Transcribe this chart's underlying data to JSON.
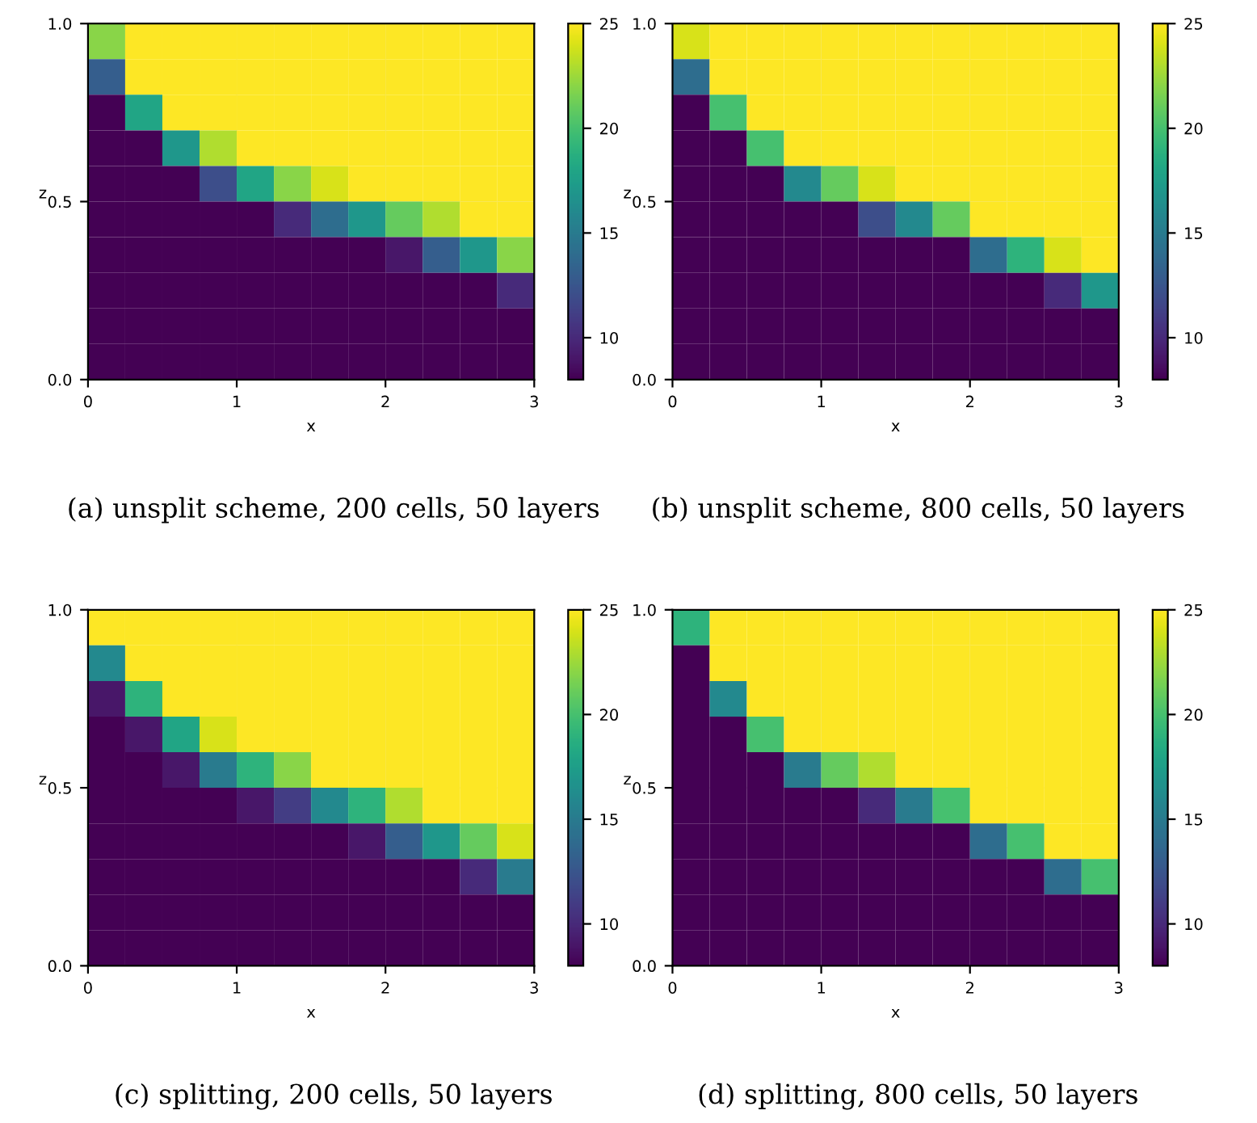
{
  "chart_data": [
    {
      "type": "heatmap",
      "xlabel": "x",
      "ylabel": "z",
      "annotations": [
        "(a) unsplit scheme, 200 cells, 50 layers"
      ],
      "xlim": [
        0,
        3
      ],
      "ylim": [
        0,
        1
      ],
      "xticks": [
        {
          "value": 0,
          "label": "0"
        },
        {
          "value": 1,
          "label": "1"
        },
        {
          "value": 2,
          "label": "2"
        },
        {
          "value": 3,
          "label": "3"
        }
      ],
      "yticks": [
        {
          "value": 0,
          "label": "0.0"
        },
        {
          "value": 0.5,
          "label": "0.5"
        },
        {
          "value": 1,
          "label": "1.0"
        }
      ],
      "grid": true,
      "clim": [
        8,
        25
      ],
      "cticks": [
        {
          "value": 10,
          "label": "10"
        },
        {
          "value": 15,
          "label": "15"
        },
        {
          "value": 20,
          "label": "20"
        },
        {
          "value": 25,
          "label": "25"
        }
      ],
      "x": [
        0.125,
        0.375,
        0.625,
        0.875,
        1.125,
        1.375,
        1.625,
        1.875,
        2.125,
        2.375,
        2.625,
        2.875
      ],
      "cells": [
        [
          22,
          25,
          25,
          25,
          25,
          25,
          25,
          25,
          25,
          25,
          25,
          25
        ],
        [
          13,
          25,
          25,
          25,
          25,
          25,
          25,
          25,
          25,
          25,
          25,
          25
        ],
        [
          8,
          18,
          25,
          25,
          25,
          25,
          25,
          25,
          25,
          25,
          25,
          25
        ],
        [
          8,
          8,
          17,
          23,
          25,
          25,
          25,
          25,
          25,
          25,
          25,
          25
        ],
        [
          8,
          8,
          8,
          12,
          18,
          22,
          24,
          25,
          25,
          25,
          25,
          25
        ],
        [
          8,
          8,
          8,
          8,
          8,
          10,
          14,
          17,
          21,
          23,
          25,
          25
        ],
        [
          8,
          8,
          8,
          8,
          8,
          8,
          8,
          8,
          9,
          13,
          17,
          22
        ],
        [
          8,
          8,
          8,
          8,
          8,
          8,
          8,
          8,
          8,
          8,
          8,
          10
        ],
        [
          8,
          8,
          8,
          8,
          8,
          8,
          8,
          8,
          8,
          8,
          8,
          8
        ],
        [
          8,
          8,
          8,
          8,
          8,
          8,
          8,
          8,
          8,
          8,
          8,
          8
        ]
      ]
    },
    {
      "type": "heatmap",
      "xlabel": "x",
      "ylabel": "z",
      "annotations": [
        "(b) unsplit scheme, 800 cells, 50 layers"
      ],
      "xlim": [
        0,
        3
      ],
      "ylim": [
        0,
        1
      ],
      "xticks": [
        {
          "value": 0,
          "label": "0"
        },
        {
          "value": 1,
          "label": "1"
        },
        {
          "value": 2,
          "label": "2"
        },
        {
          "value": 3,
          "label": "3"
        }
      ],
      "yticks": [
        {
          "value": 0,
          "label": "0.0"
        },
        {
          "value": 0.5,
          "label": "0.5"
        },
        {
          "value": 1,
          "label": "1.0"
        }
      ],
      "grid": true,
      "clim": [
        8,
        25
      ],
      "cticks": [
        {
          "value": 10,
          "label": "10"
        },
        {
          "value": 15,
          "label": "15"
        },
        {
          "value": 20,
          "label": "20"
        },
        {
          "value": 25,
          "label": "25"
        }
      ],
      "x": [
        0.125,
        0.375,
        0.625,
        0.875,
        1.125,
        1.375,
        1.625,
        1.875,
        2.125,
        2.375,
        2.625,
        2.875
      ],
      "cells": [
        [
          24,
          25,
          25,
          25,
          25,
          25,
          25,
          25,
          25,
          25,
          25,
          25
        ],
        [
          14,
          25,
          25,
          25,
          25,
          25,
          25,
          25,
          25,
          25,
          25,
          25
        ],
        [
          8,
          20,
          25,
          25,
          25,
          25,
          25,
          25,
          25,
          25,
          25,
          25
        ],
        [
          8,
          8,
          20,
          25,
          25,
          25,
          25,
          25,
          25,
          25,
          25,
          25
        ],
        [
          8,
          8,
          8,
          16,
          21,
          24,
          25,
          25,
          25,
          25,
          25,
          25
        ],
        [
          8,
          8,
          8,
          8,
          8,
          12,
          16,
          21,
          25,
          25,
          25,
          25
        ],
        [
          8,
          8,
          8,
          8,
          8,
          8,
          8,
          8,
          14,
          19,
          24,
          25
        ],
        [
          8,
          8,
          8,
          8,
          8,
          8,
          8,
          8,
          8,
          8,
          10,
          17
        ],
        [
          8,
          8,
          8,
          8,
          8,
          8,
          8,
          8,
          8,
          8,
          8,
          8
        ],
        [
          8,
          8,
          8,
          8,
          8,
          8,
          8,
          8,
          8,
          8,
          8,
          8
        ]
      ]
    },
    {
      "type": "heatmap",
      "xlabel": "x",
      "ylabel": "z",
      "annotations": [
        "(c) splitting, 200 cells, 50 layers"
      ],
      "xlim": [
        0,
        3
      ],
      "ylim": [
        0,
        1
      ],
      "xticks": [
        {
          "value": 0,
          "label": "0"
        },
        {
          "value": 1,
          "label": "1"
        },
        {
          "value": 2,
          "label": "2"
        },
        {
          "value": 3,
          "label": "3"
        }
      ],
      "yticks": [
        {
          "value": 0,
          "label": "0.0"
        },
        {
          "value": 0.5,
          "label": "0.5"
        },
        {
          "value": 1,
          "label": "1.0"
        }
      ],
      "grid": true,
      "clim": [
        8,
        25
      ],
      "cticks": [
        {
          "value": 10,
          "label": "10"
        },
        {
          "value": 15,
          "label": "15"
        },
        {
          "value": 20,
          "label": "20"
        },
        {
          "value": 25,
          "label": "25"
        }
      ],
      "x": [
        0.125,
        0.375,
        0.625,
        0.875,
        1.125,
        1.375,
        1.625,
        1.875,
        2.125,
        2.375,
        2.625,
        2.875
      ],
      "cells": [
        [
          25,
          25,
          25,
          25,
          25,
          25,
          25,
          25,
          25,
          25,
          25,
          25
        ],
        [
          16,
          25,
          25,
          25,
          25,
          25,
          25,
          25,
          25,
          25,
          25,
          25
        ],
        [
          9,
          19,
          25,
          25,
          25,
          25,
          25,
          25,
          25,
          25,
          25,
          25
        ],
        [
          8,
          9,
          18,
          24,
          25,
          25,
          25,
          25,
          25,
          25,
          25,
          25
        ],
        [
          8,
          8,
          9,
          15,
          19,
          22,
          25,
          25,
          25,
          25,
          25,
          25
        ],
        [
          8,
          8,
          8,
          8,
          9,
          11,
          16,
          19,
          23,
          25,
          25,
          25
        ],
        [
          8,
          8,
          8,
          8,
          8,
          8,
          8,
          9,
          13,
          17,
          21,
          24
        ],
        [
          8,
          8,
          8,
          8,
          8,
          8,
          8,
          8,
          8,
          8,
          10,
          15
        ],
        [
          8,
          8,
          8,
          8,
          8,
          8,
          8,
          8,
          8,
          8,
          8,
          8
        ],
        [
          8,
          8,
          8,
          8,
          8,
          8,
          8,
          8,
          8,
          8,
          8,
          8
        ]
      ]
    },
    {
      "type": "heatmap",
      "xlabel": "x",
      "ylabel": "z",
      "annotations": [
        "(d) splitting, 800 cells, 50 layers"
      ],
      "xlim": [
        0,
        3
      ],
      "ylim": [
        0,
        1
      ],
      "xticks": [
        {
          "value": 0,
          "label": "0"
        },
        {
          "value": 1,
          "label": "1"
        },
        {
          "value": 2,
          "label": "2"
        },
        {
          "value": 3,
          "label": "3"
        }
      ],
      "yticks": [
        {
          "value": 0,
          "label": "0.0"
        },
        {
          "value": 0.5,
          "label": "0.5"
        },
        {
          "value": 1,
          "label": "1.0"
        }
      ],
      "grid": true,
      "clim": [
        8,
        25
      ],
      "cticks": [
        {
          "value": 10,
          "label": "10"
        },
        {
          "value": 15,
          "label": "15"
        },
        {
          "value": 20,
          "label": "20"
        },
        {
          "value": 25,
          "label": "25"
        }
      ],
      "x": [
        0.125,
        0.375,
        0.625,
        0.875,
        1.125,
        1.375,
        1.625,
        1.875,
        2.125,
        2.375,
        2.625,
        2.875
      ],
      "cells": [
        [
          19,
          25,
          25,
          25,
          25,
          25,
          25,
          25,
          25,
          25,
          25,
          25
        ],
        [
          8,
          25,
          25,
          25,
          25,
          25,
          25,
          25,
          25,
          25,
          25,
          25
        ],
        [
          8,
          16,
          25,
          25,
          25,
          25,
          25,
          25,
          25,
          25,
          25,
          25
        ],
        [
          8,
          8,
          20,
          25,
          25,
          25,
          25,
          25,
          25,
          25,
          25,
          25
        ],
        [
          8,
          8,
          8,
          15,
          21,
          23,
          25,
          25,
          25,
          25,
          25,
          25
        ],
        [
          8,
          8,
          8,
          8,
          8,
          10,
          15,
          20,
          25,
          25,
          25,
          25
        ],
        [
          8,
          8,
          8,
          8,
          8,
          8,
          8,
          8,
          14,
          20,
          25,
          25
        ],
        [
          8,
          8,
          8,
          8,
          8,
          8,
          8,
          8,
          8,
          8,
          14,
          20
        ],
        [
          8,
          8,
          8,
          8,
          8,
          8,
          8,
          8,
          8,
          8,
          8,
          8
        ],
        [
          8,
          8,
          8,
          8,
          8,
          8,
          8,
          8,
          8,
          8,
          8,
          8
        ]
      ]
    }
  ]
}
